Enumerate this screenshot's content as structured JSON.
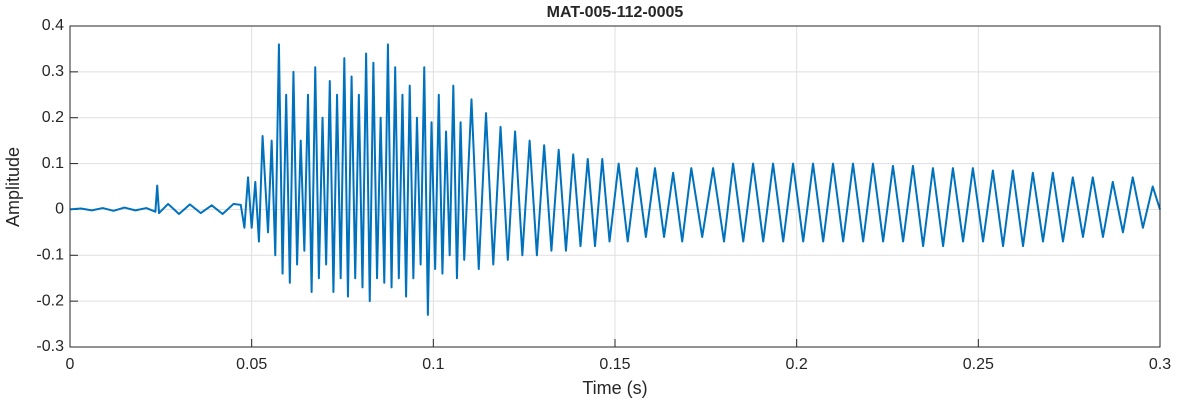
{
  "chart_data": {
    "type": "line",
    "title": "MAT-005-112-0005",
    "x_label": "Time (s)",
    "y_label": "Amplitude",
    "xlim": [
      0,
      0.3
    ],
    "ylim": [
      -0.3,
      0.4
    ],
    "xticks": [
      0,
      0.05,
      0.1,
      0.15,
      0.2,
      0.25,
      0.3
    ],
    "yticks": [
      -0.3,
      -0.2,
      -0.1,
      0,
      0.1,
      0.2,
      0.3,
      0.4
    ],
    "grid": true,
    "x": [
      0,
      0.003,
      0.006,
      0.009,
      0.012,
      0.015,
      0.018,
      0.021,
      0.0235,
      0.024,
      0.0245,
      0.027,
      0.03,
      0.033,
      0.036,
      0.039,
      0.042,
      0.045,
      0.047,
      0.048,
      0.049,
      0.05,
      0.051,
      0.052,
      0.053,
      0.0545,
      0.0555,
      0.0565,
      0.0575,
      0.0585,
      0.0595,
      0.0605,
      0.0615,
      0.0625,
      0.0635,
      0.0645,
      0.0655,
      0.0665,
      0.0675,
      0.0685,
      0.0695,
      0.0705,
      0.0715,
      0.0725,
      0.0735,
      0.0745,
      0.0755,
      0.0765,
      0.0775,
      0.0785,
      0.0795,
      0.0805,
      0.0815,
      0.0825,
      0.0835,
      0.0845,
      0.0855,
      0.0865,
      0.0875,
      0.0885,
      0.0895,
      0.0905,
      0.0915,
      0.0925,
      0.0935,
      0.0945,
      0.0955,
      0.0965,
      0.0975,
      0.0985,
      0.0995,
      0.1005,
      0.1015,
      0.1025,
      0.1035,
      0.1045,
      0.1055,
      0.1065,
      0.1075,
      0.1085,
      0.1105,
      0.1125,
      0.1145,
      0.1165,
      0.1185,
      0.1205,
      0.1225,
      0.1245,
      0.1265,
      0.1285,
      0.1305,
      0.1325,
      0.1345,
      0.1365,
      0.1385,
      0.1405,
      0.1425,
      0.1445,
      0.1465,
      0.1485,
      0.151,
      0.1535,
      0.156,
      0.1585,
      0.161,
      0.1635,
      0.166,
      0.1685,
      0.171,
      0.174,
      0.177,
      0.18,
      0.1825,
      0.1853,
      0.188,
      0.1908,
      0.1935,
      0.1963,
      0.199,
      0.2018,
      0.2045,
      0.2073,
      0.21,
      0.2128,
      0.2155,
      0.2183,
      0.221,
      0.2238,
      0.2265,
      0.2293,
      0.232,
      0.2348,
      0.2375,
      0.2403,
      0.243,
      0.2458,
      0.2485,
      0.2513,
      0.254,
      0.2568,
      0.2595,
      0.2623,
      0.265,
      0.2678,
      0.2705,
      0.2733,
      0.276,
      0.2788,
      0.2815,
      0.2843,
      0.287,
      0.2898,
      0.2925,
      0.2953,
      0.298,
      0.3
    ],
    "series": [
      {
        "name": "Amplitude",
        "color": "#0072bd",
        "values": [
          0,
          0.002,
          -0.002,
          0.003,
          -0.003,
          0.004,
          -0.002,
          0.003,
          -0.005,
          0.052,
          -0.008,
          0.012,
          -0.01,
          0.011,
          -0.008,
          0.009,
          -0.01,
          0.012,
          0.01,
          -0.04,
          0.07,
          -0.04,
          0.06,
          -0.07,
          0.16,
          -0.05,
          0.15,
          -0.1,
          0.36,
          -0.14,
          0.25,
          -0.16,
          0.3,
          -0.12,
          0.15,
          -0.09,
          0.25,
          -0.18,
          0.31,
          -0.15,
          0.2,
          -0.12,
          0.28,
          -0.18,
          0.25,
          -0.15,
          0.33,
          -0.19,
          0.29,
          -0.15,
          0.25,
          -0.17,
          0.34,
          -0.2,
          0.32,
          -0.15,
          0.2,
          -0.16,
          0.36,
          -0.17,
          0.31,
          -0.15,
          0.25,
          -0.19,
          0.27,
          -0.15,
          0.2,
          -0.12,
          0.31,
          -0.23,
          0.19,
          -0.13,
          0.25,
          -0.14,
          0.17,
          -0.1,
          0.27,
          -0.15,
          0.19,
          -0.11,
          0.24,
          -0.13,
          0.21,
          -0.12,
          0.18,
          -0.11,
          0.17,
          -0.1,
          0.15,
          -0.1,
          0.14,
          -0.09,
          0.13,
          -0.09,
          0.12,
          -0.08,
          0.11,
          -0.08,
          0.11,
          -0.07,
          0.1,
          -0.07,
          0.09,
          -0.06,
          0.09,
          -0.06,
          0.08,
          -0.07,
          0.09,
          -0.06,
          0.09,
          -0.07,
          0.1,
          -0.07,
          0.1,
          -0.07,
          0.1,
          -0.07,
          0.1,
          -0.07,
          0.1,
          -0.07,
          0.1,
          -0.07,
          0.1,
          -0.07,
          0.1,
          -0.07,
          0.095,
          -0.07,
          0.095,
          -0.08,
          0.09,
          -0.08,
          0.09,
          -0.07,
          0.09,
          -0.07,
          0.085,
          -0.08,
          0.085,
          -0.08,
          0.08,
          -0.07,
          0.08,
          -0.07,
          0.07,
          -0.06,
          0.07,
          -0.06,
          0.06,
          -0.05,
          0.07,
          -0.04,
          0.05,
          0
        ]
      }
    ]
  }
}
